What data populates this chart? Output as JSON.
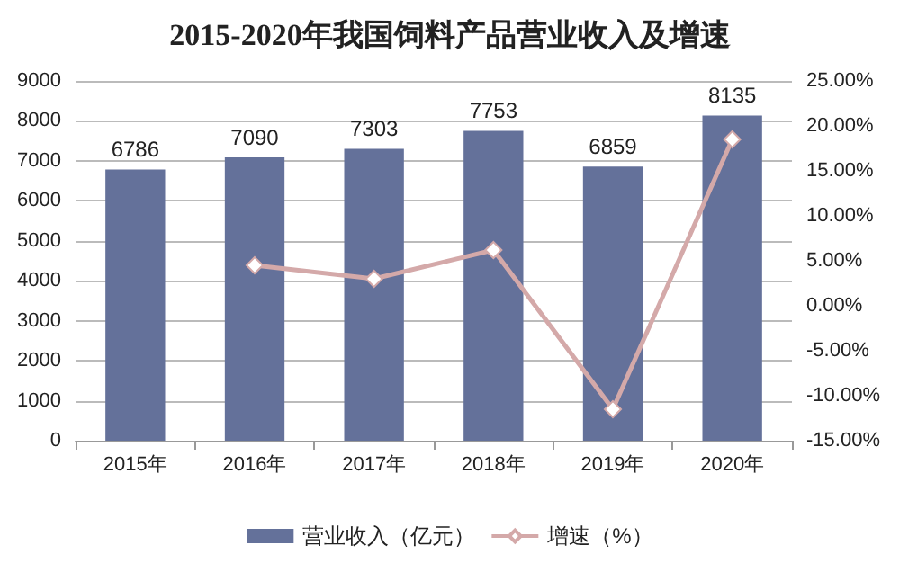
{
  "chart_data": {
    "type": "bar",
    "title": "2015-2020年我国饲料产品营业收入及增速",
    "categories": [
      "2015年",
      "2016年",
      "2017年",
      "2018年",
      "2019年",
      "2020年"
    ],
    "series": [
      {
        "name": "营业收入（亿元）",
        "color": "#64719a",
        "values": [
          6786,
          7090,
          7303,
          7753,
          6859,
          8135
        ],
        "value_labels": [
          "6786",
          "7090",
          "7303",
          "7753",
          "6859",
          "8135"
        ]
      },
      {
        "name": "增速（%）",
        "type": "line",
        "axis": "y2",
        "color": "#d4a9a9",
        "marker": "diamond",
        "values": [
          null,
          4.5,
          3.0,
          6.2,
          -11.5,
          18.5
        ]
      }
    ],
    "ylim": [
      0,
      9000
    ],
    "yticks": [
      0,
      1000,
      2000,
      3000,
      4000,
      5000,
      6000,
      7000,
      8000,
      9000
    ],
    "y2lim": [
      -15,
      25
    ],
    "y2ticks": [
      {
        "value": -15,
        "label": "-15.00%"
      },
      {
        "value": -10,
        "label": "-10.00%"
      },
      {
        "value": -5,
        "label": "-5.00%"
      },
      {
        "value": 0,
        "label": "0.00%"
      },
      {
        "value": 5,
        "label": "5.00%"
      },
      {
        "value": 10,
        "label": "10.00%"
      },
      {
        "value": 15,
        "label": "15.00%"
      },
      {
        "value": 20,
        "label": "20.00%"
      },
      {
        "value": 25,
        "label": "25.00%"
      }
    ],
    "grid": "y",
    "legend": "bottom"
  }
}
